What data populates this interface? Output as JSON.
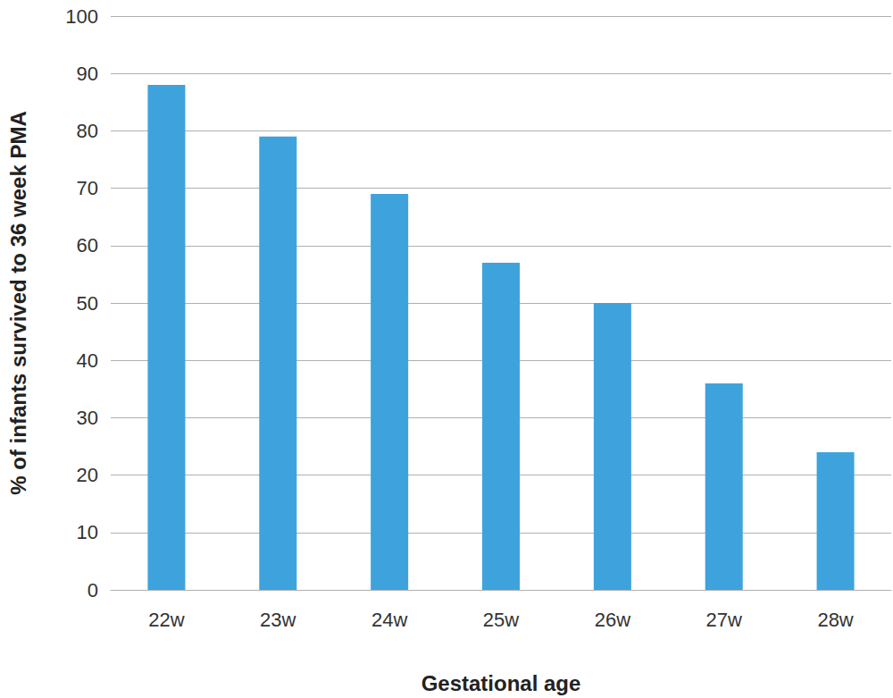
{
  "chart_data": {
    "type": "bar",
    "x_label": "Gestational age",
    "y_label": "% of infants survived to 36 week PMA",
    "categories": [
      "22w",
      "23w",
      "24w",
      "25w",
      "26w",
      "27w",
      "28w"
    ],
    "values": [
      88,
      79,
      69,
      57,
      50,
      36,
      24
    ],
    "color": "#3ea3dc",
    "ylim": [
      0,
      100
    ],
    "yticks": [
      0,
      10,
      20,
      30,
      40,
      50,
      60,
      70,
      80,
      90,
      100
    ],
    "grid": true
  }
}
